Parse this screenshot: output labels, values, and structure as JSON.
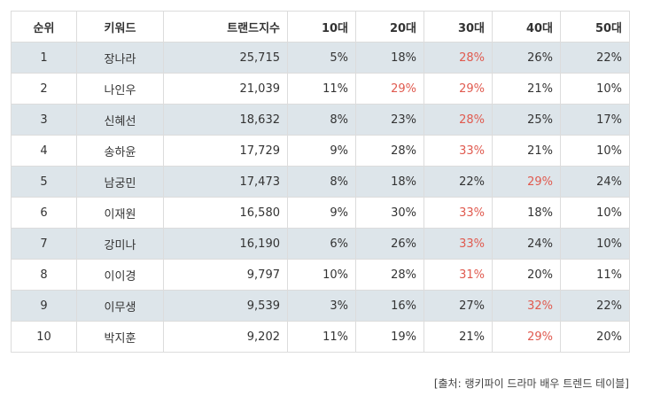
{
  "headers": [
    "순위",
    "키워드",
    "트랜드지수",
    "10대",
    "20대",
    "30대",
    "40대",
    "50대"
  ],
  "rows": [
    {
      "rank": "1",
      "name": "장나라",
      "index": "25,715",
      "v10": "5%",
      "v20": "18%",
      "v30": "28%",
      "v40": "26%",
      "v50": "22%",
      "max": "v30"
    },
    {
      "rank": "2",
      "name": "나인우",
      "index": "21,039",
      "v10": "11%",
      "v20": "29%",
      "v30": "29%",
      "v40": "21%",
      "v50": "10%",
      "max": "v20,v30"
    },
    {
      "rank": "3",
      "name": "신혜선",
      "index": "18,632",
      "v10": "8%",
      "v20": "23%",
      "v30": "28%",
      "v40": "25%",
      "v50": "17%",
      "max": "v30"
    },
    {
      "rank": "4",
      "name": "송하윤",
      "index": "17,729",
      "v10": "9%",
      "v20": "28%",
      "v30": "33%",
      "v40": "21%",
      "v50": "10%",
      "max": "v30"
    },
    {
      "rank": "5",
      "name": "남궁민",
      "index": "17,473",
      "v10": "8%",
      "v20": "18%",
      "v30": "22%",
      "v40": "29%",
      "v50": "24%",
      "max": "v40"
    },
    {
      "rank": "6",
      "name": "이재원",
      "index": "16,580",
      "v10": "9%",
      "v20": "30%",
      "v30": "33%",
      "v40": "18%",
      "v50": "10%",
      "max": "v30"
    },
    {
      "rank": "7",
      "name": "강미나",
      "index": "16,190",
      "v10": "6%",
      "v20": "26%",
      "v30": "33%",
      "v40": "24%",
      "v50": "10%",
      "max": "v30"
    },
    {
      "rank": "8",
      "name": "이이경",
      "index": "9,797",
      "v10": "10%",
      "v20": "28%",
      "v30": "31%",
      "v40": "20%",
      "v50": "11%",
      "max": "v30"
    },
    {
      "rank": "9",
      "name": "이무생",
      "index": "9,539",
      "v10": "3%",
      "v20": "16%",
      "v30": "27%",
      "v40": "32%",
      "v50": "22%",
      "max": "v40"
    },
    {
      "rank": "10",
      "name": "박지훈",
      "index": "9,202",
      "v10": "11%",
      "v20": "19%",
      "v30": "21%",
      "v40": "29%",
      "v50": "20%",
      "max": "v40"
    }
  ],
  "source": "[출처: 랭키파이 드라마 배우 트렌드 테이블]",
  "colors": {
    "highlight": "#e05a4f",
    "stripe": "#dde5ea",
    "border": "#dcdcdc"
  }
}
